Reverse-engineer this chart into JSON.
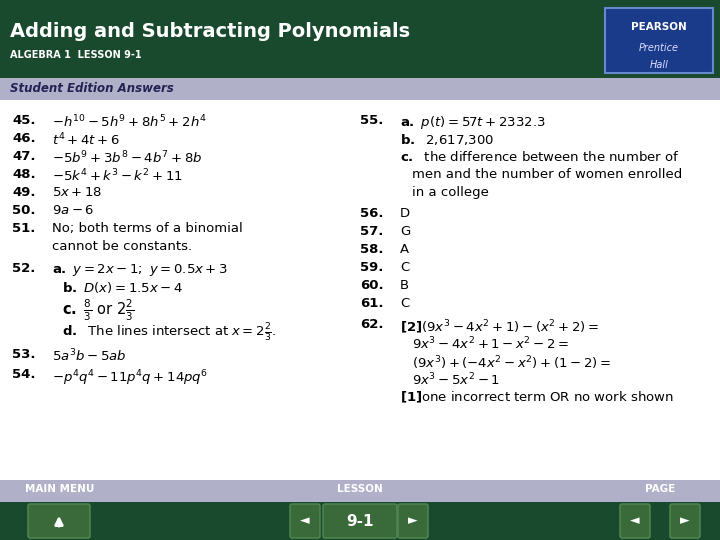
{
  "title": "Adding and Subtracting Polynomials",
  "subtitle": "ALGEBRA 1  LESSON 9-1",
  "section_header": "Student Edition Answers",
  "header_bg": "#1a4a2e",
  "section_bg": "#b0b0c8",
  "footer_top_bg": "#b0b0c8",
  "footer_bot_bg": "#1a4a2e",
  "content_bg": "#ffffff",
  "pearson_border": "#4444bb",
  "pearson_inner_bg": "#2244aa",
  "footer_center_text": "9-1",
  "fig_w": 7.2,
  "fig_h": 5.4,
  "dpi": 100
}
